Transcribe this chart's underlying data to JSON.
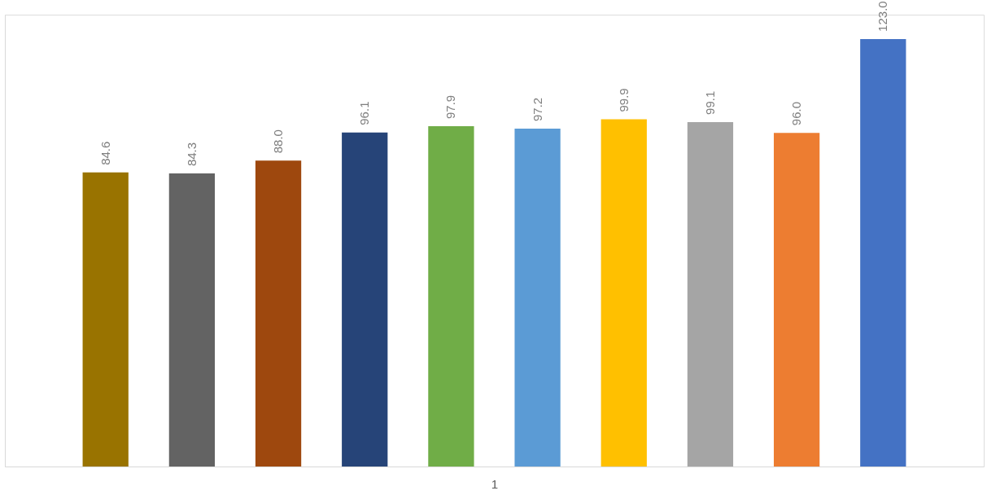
{
  "chart_data": {
    "type": "bar",
    "xlabel": "1",
    "categories": [
      null,
      null,
      null,
      null,
      null,
      null,
      null,
      null,
      null,
      null
    ],
    "values": [
      84.6,
      84.3,
      88.0,
      96.1,
      97.9,
      97.2,
      99.9,
      99.1,
      96.0,
      123.0
    ],
    "colors": [
      "#997300",
      "#636363",
      "#9e480e",
      "#264478",
      "#70ad47",
      "#5b9bd5",
      "#ffc000",
      "#a5a5a5",
      "#ed7d31",
      "#4472c4"
    ],
    "value_labels": [
      "84.6",
      "84.3",
      "88.0",
      "96.1",
      "97.9",
      "97.2",
      "99.9",
      "99.1",
      "96.0",
      "123.0"
    ],
    "tick_labels": false,
    "grid": false,
    "legend": false
  }
}
